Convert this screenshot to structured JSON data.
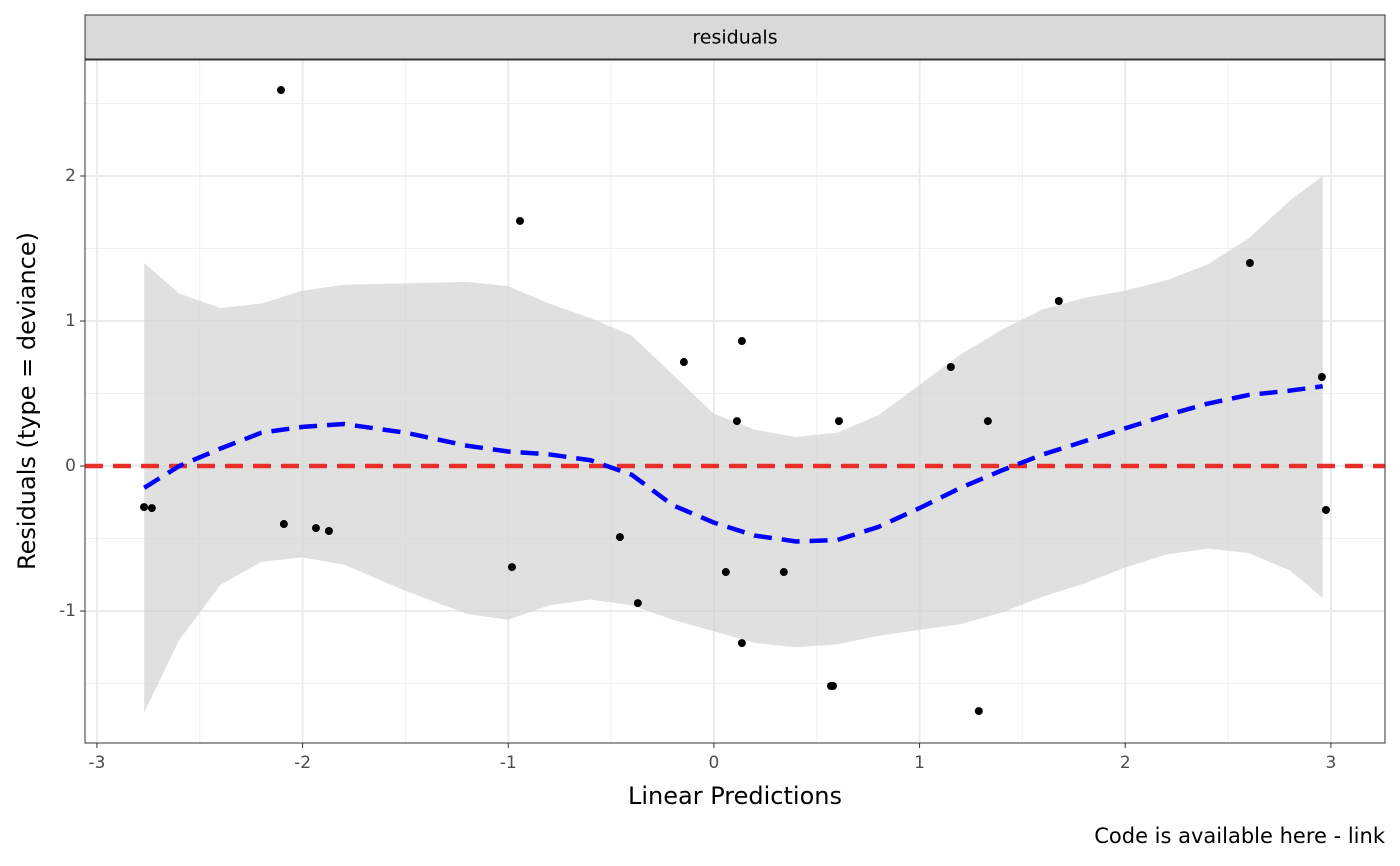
{
  "chart_data": {
    "type": "scatter",
    "strip": "residuals",
    "x_label": "Linear Predictions",
    "y_label": "Residuals (type = deviance)",
    "caption": "Code is available here - link",
    "xlim": [
      -3.058,
      3.263
    ],
    "ylim": [
      -1.91,
      2.8
    ],
    "xticks": [
      -3,
      -2,
      -1,
      0,
      1,
      2,
      3
    ],
    "yticks": [
      -1,
      0,
      1,
      2
    ],
    "grid": true,
    "point_color": "#000000",
    "x": [
      -2.105,
      -0.943,
      -2.771,
      -2.733,
      -2.091,
      -1.935,
      -1.872,
      -0.982,
      -0.457,
      -0.37,
      -0.146,
      0.112,
      0.136,
      0.058,
      0.136,
      0.34,
      0.569,
      0.579,
      0.608,
      1.152,
      1.288,
      1.332,
      1.677,
      2.606,
      2.956,
      2.976
    ],
    "y": [
      2.593,
      1.69,
      -0.283,
      -0.29,
      -0.4,
      -0.428,
      -0.448,
      -0.697,
      -0.49,
      -0.945,
      0.717,
      0.31,
      0.862,
      -0.731,
      -1.221,
      -0.731,
      -1.517,
      -1.517,
      0.31,
      0.683,
      -1.69,
      0.31,
      1.138,
      1.4,
      0.614,
      -0.303
    ],
    "hline": 0,
    "hline_color": "#e8302a",
    "smooth": {
      "color": "#0000ff",
      "ribbon_color": "#d3d3d3",
      "x": [
        -2.77,
        -2.6,
        -2.4,
        -2.2,
        -2.0,
        -1.8,
        -1.5,
        -1.2,
        -1.0,
        -0.8,
        -0.6,
        -0.4,
        -0.2,
        0,
        0.2,
        0.4,
        0.6,
        0.8,
        1.0,
        1.2,
        1.4,
        1.6,
        1.8,
        2.0,
        2.2,
        2.4,
        2.6,
        2.8,
        2.96
      ],
      "y": [
        -0.15,
        0,
        0.12,
        0.23,
        0.27,
        0.29,
        0.23,
        0.14,
        0.1,
        0.08,
        0.04,
        -0.06,
        -0.27,
        -0.39,
        -0.48,
        -0.52,
        -0.51,
        -0.42,
        -0.29,
        -0.15,
        -0.03,
        0.08,
        0.17,
        0.26,
        0.35,
        0.43,
        0.49,
        0.52,
        0.55
      ],
      "ymax": [
        1.4,
        1.19,
        1.09,
        1.12,
        1.21,
        1.25,
        1.26,
        1.27,
        1.24,
        1.12,
        1.02,
        0.9,
        0.63,
        0.36,
        0.25,
        0.2,
        0.23,
        0.35,
        0.56,
        0.77,
        0.94,
        1.08,
        1.16,
        1.21,
        1.28,
        1.39,
        1.57,
        1.83,
        2.0
      ],
      "ymin": [
        -1.7,
        -1.2,
        -0.82,
        -0.66,
        -0.63,
        -0.68,
        -0.86,
        -1.02,
        -1.06,
        -0.96,
        -0.92,
        -0.96,
        -1.06,
        -1.14,
        -1.22,
        -1.25,
        -1.23,
        -1.17,
        -1.13,
        -1.09,
        -1.01,
        -0.9,
        -0.81,
        -0.7,
        -0.61,
        -0.57,
        -0.6,
        -0.72,
        -0.91
      ]
    }
  }
}
